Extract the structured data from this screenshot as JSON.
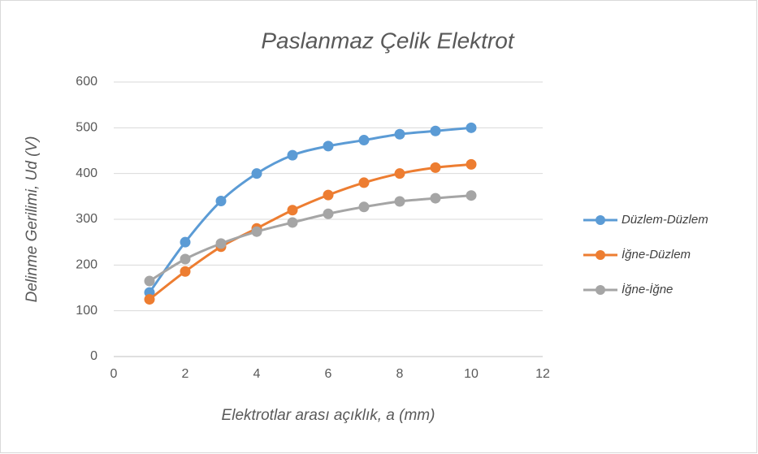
{
  "chart_data": {
    "type": "line",
    "title": "Paslanmaz Çelik Elektrot",
    "x_label": "Elektrotlar arası açıklık, a (mm)",
    "y_label": "Delinme Gerilimi, Ud (V)",
    "x": [
      1,
      2,
      3,
      4,
      5,
      6,
      7,
      8,
      9,
      10
    ],
    "series": [
      {
        "name": "Düzlem-Düzlem",
        "color": "#5b9bd5",
        "values": [
          140,
          250,
          340,
          400,
          440,
          460,
          473,
          486,
          493,
          500
        ]
      },
      {
        "name": "İğne-Düzlem",
        "color": "#ed7d31",
        "values": [
          125,
          186,
          240,
          280,
          320,
          353,
          380,
          400,
          413,
          420
        ]
      },
      {
        "name": "İğne-İğne",
        "color": "#a5a5a5",
        "values": [
          165,
          213,
          247,
          273,
          293,
          312,
          327,
          339,
          346,
          352
        ]
      }
    ],
    "xlim": [
      0,
      12
    ],
    "xticks": [
      0,
      2,
      4,
      6,
      8,
      10,
      12
    ],
    "ylim": [
      0,
      600
    ],
    "yticks": [
      0,
      100,
      200,
      300,
      400,
      500,
      600
    ],
    "grid": true,
    "smooth": true,
    "legend": "right"
  }
}
